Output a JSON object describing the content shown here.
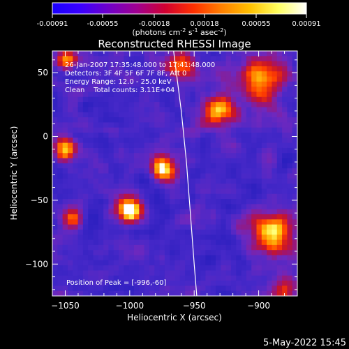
{
  "chart_data": {
    "type": "heatmap",
    "title": "Reconstructed RHESSI Image",
    "xlabel": "Heliocentric X (arcsec)",
    "ylabel": "Heliocentric Y (arcsec)",
    "xlim": [
      -1060,
      -870
    ],
    "ylim": [
      -125,
      67
    ],
    "x_ticks": [
      -1050,
      -1000,
      -950,
      -900
    ],
    "y_ticks": [
      50,
      0,
      -50,
      -100
    ],
    "x_tick_labels": [
      "−1050",
      "−1000",
      "−950",
      "−900"
    ],
    "y_tick_labels": [
      "50",
      "0",
      "−50",
      "−100"
    ],
    "colorbar": {
      "ticks": [
        -0.00091,
        -0.00055,
        -0.00018,
        0.00018,
        0.00055,
        0.00091
      ],
      "tick_labels": [
        "-0.00091",
        "-0.00055",
        "-0.00018",
        "0.00018",
        "0.00055",
        "0.00091"
      ],
      "unit_parts": [
        "(photons cm",
        "-2",
        " s",
        "-1",
        " asec",
        "-2",
        ")"
      ],
      "colors": [
        "#1a00ff",
        "#3a00ff",
        "#7000c8",
        "#a00090",
        "#d00030",
        "#ff3000",
        "#ff8000",
        "#ffc000",
        "#ffff60",
        "#ffffff"
      ]
    },
    "annotations": [
      "26-Jan-2007 17:35:48.000 to 17:41:48.000",
      "Detectors: 3F 4F 5F 6F 7F 8F, Att 0",
      "Energy Range: 12.0 - 25.0 keV",
      "Clean    Total counts: 3.11E+04"
    ],
    "peak_label": "Position of Peak = [-996,-60]",
    "limb": [
      [
        -966,
        67
      ],
      [
        -960,
        20
      ],
      [
        -956,
        -20
      ],
      [
        -953,
        -60
      ],
      [
        -950,
        -100
      ],
      [
        -948,
        -125
      ]
    ],
    "bright_sources": [
      {
        "x": -1000,
        "y": -57,
        "r": 10,
        "i": 1.0
      },
      {
        "x": -975,
        "y": -25,
        "r": 9,
        "i": 0.9
      },
      {
        "x": -890,
        "y": -75,
        "r": 16,
        "i": 0.85
      },
      {
        "x": -1050,
        "y": -10,
        "r": 9,
        "i": 0.75
      },
      {
        "x": -900,
        "y": 45,
        "r": 18,
        "i": 0.7
      },
      {
        "x": -930,
        "y": 20,
        "r": 12,
        "i": 0.65
      },
      {
        "x": -1045,
        "y": -65,
        "r": 9,
        "i": 0.65
      },
      {
        "x": -960,
        "y": 55,
        "r": 12,
        "i": 0.6
      },
      {
        "x": -1050,
        "y": 60,
        "r": 8,
        "i": 0.6
      },
      {
        "x": -880,
        "y": -120,
        "r": 10,
        "i": 0.55
      }
    ],
    "grid": false
  },
  "footer": {
    "timestamp": "5-May-2022 15:45"
  }
}
